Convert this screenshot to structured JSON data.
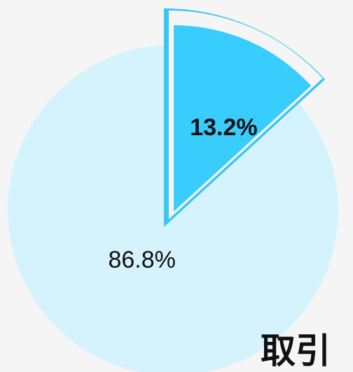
{
  "chart_data": {
    "type": "pie",
    "title": "取引",
    "values": [
      13.2,
      86.8
    ],
    "value_labels": [
      "13.2%",
      "86.8%"
    ],
    "colors": [
      "#38cdfd",
      "#d5f3fd"
    ],
    "highlight_color": "#3ac6f5"
  }
}
